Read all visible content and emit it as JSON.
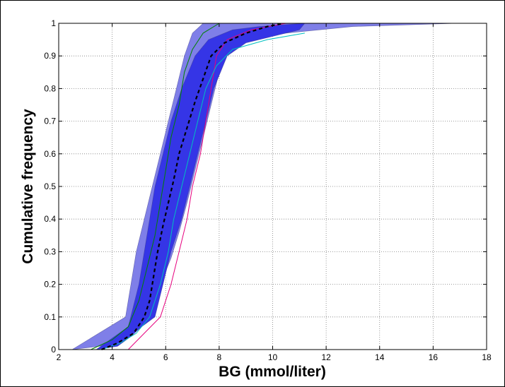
{
  "chart_data": {
    "type": "line",
    "title": "",
    "xlabel": "BG (mmol/liter)",
    "ylabel": "Cumulative frequency",
    "xlim": [
      2,
      18
    ],
    "ylim": [
      0,
      1
    ],
    "xticks": [
      2,
      4,
      6,
      8,
      10,
      12,
      14,
      16,
      18
    ],
    "yticks": [
      0,
      0.1,
      0.2,
      0.3,
      0.4,
      0.5,
      0.6,
      0.7,
      0.8,
      0.9,
      1
    ],
    "ytick_labels": [
      "0",
      "0.1",
      "0.2",
      "0.3",
      "0.4",
      "0.5",
      "0.6",
      "0.7",
      "0.8",
      "0.9",
      "1"
    ],
    "grid": true,
    "bands": [
      {
        "role": "outer",
        "color": "#7f7fe8",
        "lower": [
          [
            2.5,
            0
          ],
          [
            3.5,
            0.01
          ],
          [
            4.4,
            0.03
          ],
          [
            5.0,
            0.07
          ],
          [
            5.4,
            0.12
          ],
          [
            5.8,
            0.2
          ],
          [
            6.2,
            0.28
          ],
          [
            6.5,
            0.36
          ],
          [
            6.8,
            0.45
          ],
          [
            7.1,
            0.55
          ],
          [
            7.4,
            0.65
          ],
          [
            7.7,
            0.75
          ],
          [
            8.0,
            0.85
          ],
          [
            8.4,
            0.92
          ],
          [
            9.0,
            0.95
          ],
          [
            10.5,
            0.97
          ],
          [
            13.0,
            0.99
          ],
          [
            16.9,
            1.0
          ]
        ],
        "upper": [
          [
            4.5,
            0.1
          ],
          [
            4.9,
            0.3
          ],
          [
            5.2,
            0.4
          ],
          [
            5.5,
            0.5
          ],
          [
            5.8,
            0.6
          ],
          [
            6.1,
            0.7
          ],
          [
            6.4,
            0.8
          ],
          [
            6.7,
            0.9
          ],
          [
            7.0,
            0.97
          ],
          [
            7.4,
            1.0
          ]
        ]
      },
      {
        "role": "inner",
        "color": "#3535e6",
        "lower": [
          [
            3.4,
            0
          ],
          [
            4.2,
            0.01
          ],
          [
            4.7,
            0.04
          ],
          [
            5.1,
            0.07
          ],
          [
            5.6,
            0.1
          ],
          [
            5.9,
            0.2
          ],
          [
            6.2,
            0.3
          ],
          [
            6.6,
            0.4
          ],
          [
            6.9,
            0.5
          ],
          [
            7.2,
            0.6
          ],
          [
            7.5,
            0.7
          ],
          [
            7.8,
            0.8
          ],
          [
            8.3,
            0.9
          ],
          [
            9.0,
            0.94
          ],
          [
            10.0,
            0.96
          ],
          [
            11.0,
            0.98
          ]
        ],
        "upper": [
          [
            4.6,
            0.07
          ],
          [
            5.0,
            0.2
          ],
          [
            5.2,
            0.3
          ],
          [
            5.4,
            0.4
          ],
          [
            5.6,
            0.5
          ],
          [
            5.9,
            0.6
          ],
          [
            6.2,
            0.7
          ],
          [
            6.6,
            0.8
          ],
          [
            7.1,
            0.9
          ],
          [
            7.6,
            0.95
          ],
          [
            8.5,
            0.98
          ],
          [
            9.5,
            0.99
          ],
          [
            11.2,
            1.0
          ]
        ]
      }
    ],
    "series": [
      {
        "color": "#e6007e",
        "style": "solid",
        "points": [
          [
            4.6,
            0
          ],
          [
            5.2,
            0.05
          ],
          [
            5.8,
            0.1
          ],
          [
            6.2,
            0.2
          ],
          [
            6.5,
            0.3
          ],
          [
            6.8,
            0.4
          ],
          [
            7.0,
            0.5
          ],
          [
            7.3,
            0.6
          ],
          [
            7.5,
            0.7
          ],
          [
            7.7,
            0.8
          ],
          [
            7.9,
            0.9
          ],
          [
            8.3,
            0.95
          ],
          [
            9.2,
            0.98
          ],
          [
            10.5,
            1.0
          ]
        ]
      },
      {
        "color": "#00c0c0",
        "style": "solid",
        "points": [
          [
            3.6,
            0
          ],
          [
            4.3,
            0.02
          ],
          [
            4.9,
            0.05
          ],
          [
            5.4,
            0.1
          ],
          [
            5.8,
            0.2
          ],
          [
            6.1,
            0.3
          ],
          [
            6.3,
            0.4
          ],
          [
            6.6,
            0.5
          ],
          [
            6.9,
            0.6
          ],
          [
            7.2,
            0.7
          ],
          [
            7.5,
            0.8
          ],
          [
            7.9,
            0.87
          ],
          [
            8.5,
            0.92
          ],
          [
            9.8,
            0.95
          ],
          [
            11.2,
            0.97
          ]
        ]
      },
      {
        "color": "#008000",
        "style": "solid",
        "points": [
          [
            3.2,
            0
          ],
          [
            4.0,
            0.03
          ],
          [
            4.6,
            0.07
          ],
          [
            5.0,
            0.15
          ],
          [
            5.3,
            0.25
          ],
          [
            5.6,
            0.35
          ],
          [
            5.8,
            0.45
          ],
          [
            6.0,
            0.55
          ],
          [
            6.2,
            0.65
          ],
          [
            6.5,
            0.75
          ],
          [
            6.7,
            0.85
          ],
          [
            7.0,
            0.92
          ],
          [
            7.4,
            0.97
          ],
          [
            8.0,
            1.0
          ]
        ]
      },
      {
        "color": "#000000",
        "style": "dashed",
        "points": [
          [
            3.6,
            0
          ],
          [
            4.2,
            0.02
          ],
          [
            4.8,
            0.05
          ],
          [
            5.2,
            0.1
          ],
          [
            5.4,
            0.15
          ],
          [
            5.6,
            0.25
          ],
          [
            5.7,
            0.3
          ],
          [
            5.9,
            0.38
          ],
          [
            6.1,
            0.45
          ],
          [
            6.3,
            0.52
          ],
          [
            6.5,
            0.6
          ],
          [
            6.8,
            0.68
          ],
          [
            7.1,
            0.76
          ],
          [
            7.4,
            0.83
          ],
          [
            7.7,
            0.9
          ],
          [
            8.2,
            0.94
          ],
          [
            9.0,
            0.97
          ],
          [
            9.8,
            0.99
          ],
          [
            10.4,
            1.0
          ]
        ]
      }
    ]
  }
}
